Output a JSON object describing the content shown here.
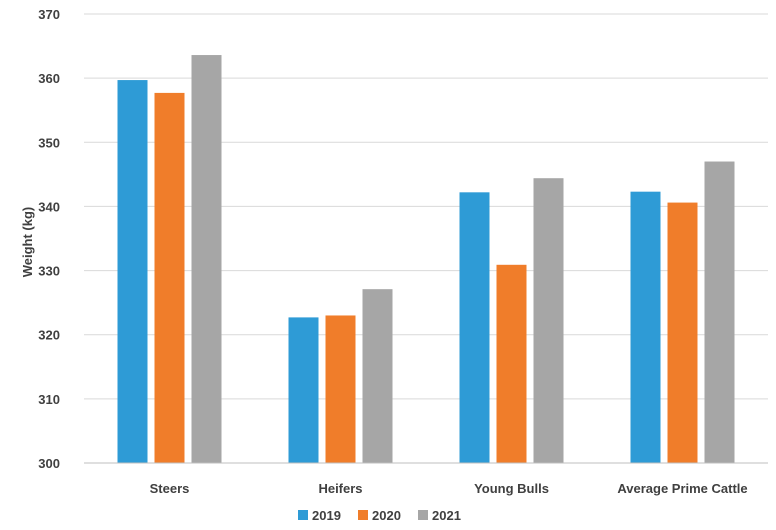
{
  "chart_data": {
    "type": "bar",
    "title": "",
    "xlabel": "",
    "ylabel": "Weight (kg)",
    "ylim": [
      300,
      370
    ],
    "yticks": [
      300,
      310,
      320,
      330,
      340,
      350,
      360,
      370
    ],
    "grid": true,
    "legend_position": "bottom",
    "categories": [
      "Steers",
      "Heifers",
      "Young Bulls",
      "Average Prime Cattle"
    ],
    "series": [
      {
        "name": "2019",
        "color": "#2e9bd6",
        "values": [
          359.7,
          322.7,
          342.2,
          342.3
        ]
      },
      {
        "name": "2020",
        "color": "#f07d2a",
        "values": [
          357.7,
          323.0,
          330.9,
          340.6
        ]
      },
      {
        "name": "2021",
        "color": "#a6a6a6",
        "values": [
          363.6,
          327.1,
          344.4,
          347.0
        ]
      }
    ]
  }
}
